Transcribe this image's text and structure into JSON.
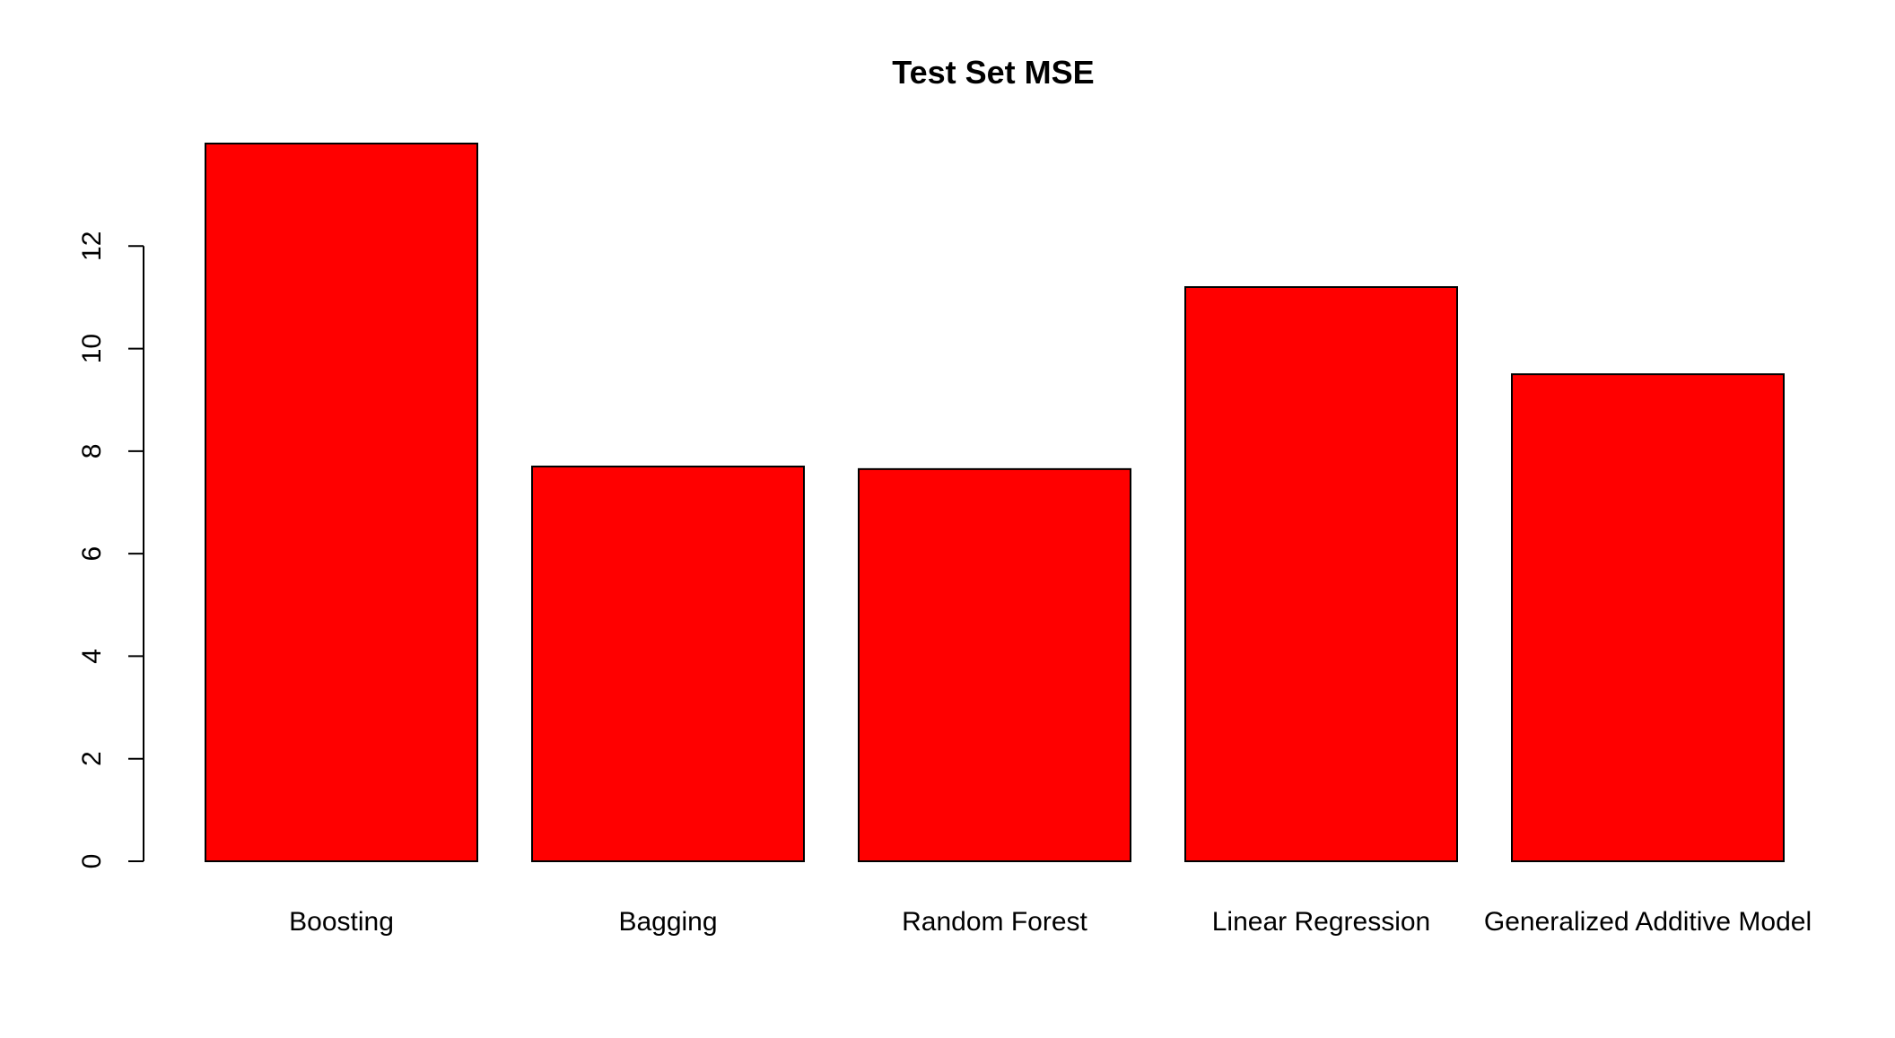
{
  "chart_data": {
    "type": "bar",
    "title": "Test Set MSE",
    "xlabel": "",
    "ylabel": "",
    "categories": [
      "Boosting",
      "Bagging",
      "Random Forest",
      "Linear Regression",
      "Generalized Additive Model"
    ],
    "values": [
      14.0,
      7.7,
      7.65,
      11.2,
      9.5
    ],
    "ylim": [
      0,
      14
    ],
    "yticks": [
      0,
      2,
      4,
      6,
      8,
      10,
      12
    ],
    "grid": false,
    "legend": "none",
    "bar_color": "#ff0000",
    "bar_border_color": "#000000"
  }
}
